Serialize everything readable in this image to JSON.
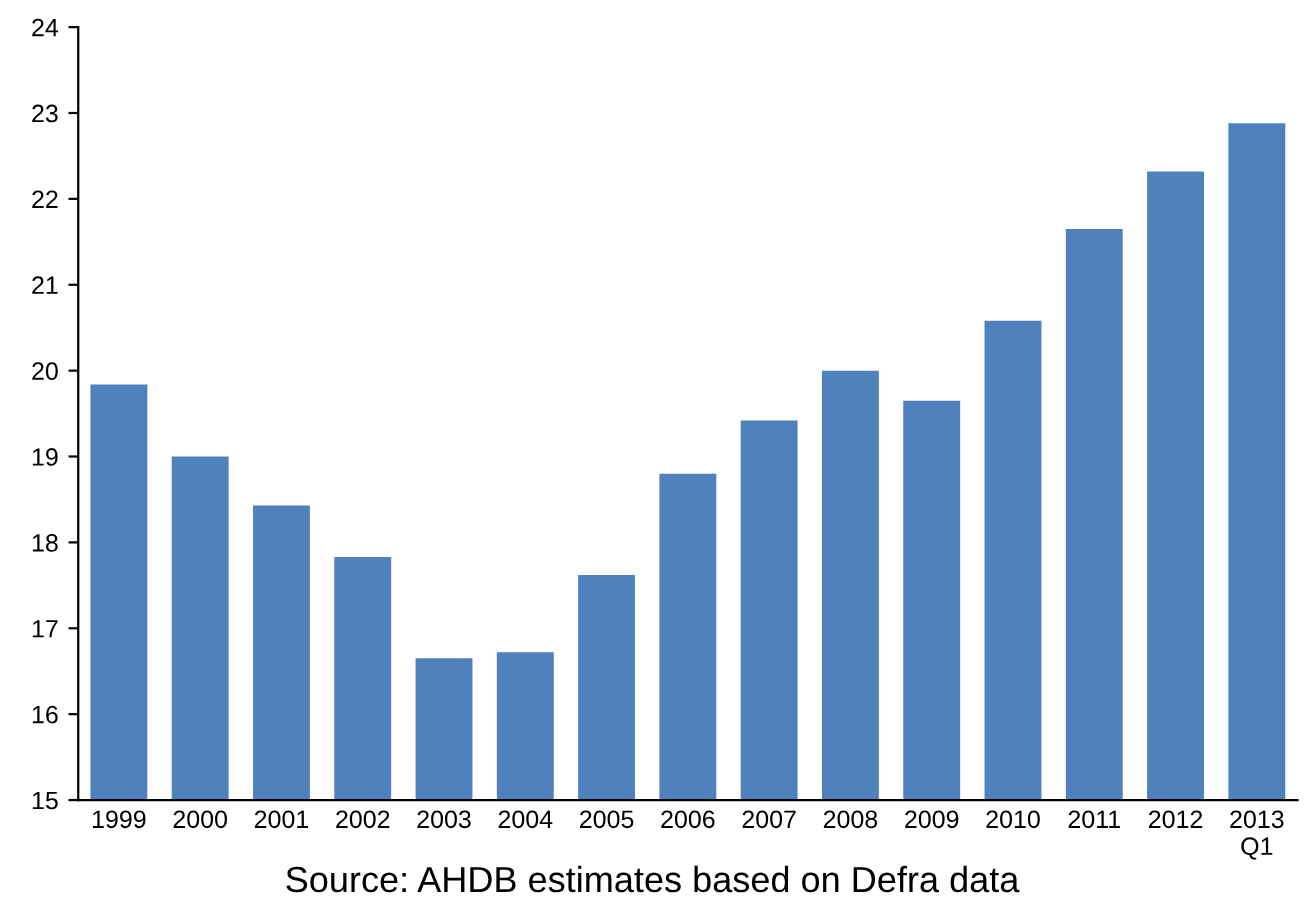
{
  "chart_data": {
    "type": "bar",
    "categories": [
      "1999",
      "2000",
      "2001",
      "2002",
      "2003",
      "2004",
      "2005",
      "2006",
      "2007",
      "2008",
      "2009",
      "2010",
      "2011",
      "2012",
      "2013\nQ1"
    ],
    "values": [
      19.84,
      19.0,
      18.43,
      17.83,
      16.65,
      16.72,
      17.62,
      18.8,
      19.42,
      20.0,
      19.65,
      20.58,
      21.65,
      22.32,
      22.88
    ],
    "color": "#4f81bd",
    "ylim": [
      15,
      24
    ],
    "yticks": [
      15,
      16,
      17,
      18,
      19,
      20,
      21,
      22,
      23,
      24
    ],
    "grid": false,
    "annotations": [
      "Source: AHDB estimates based on Defra data"
    ]
  }
}
